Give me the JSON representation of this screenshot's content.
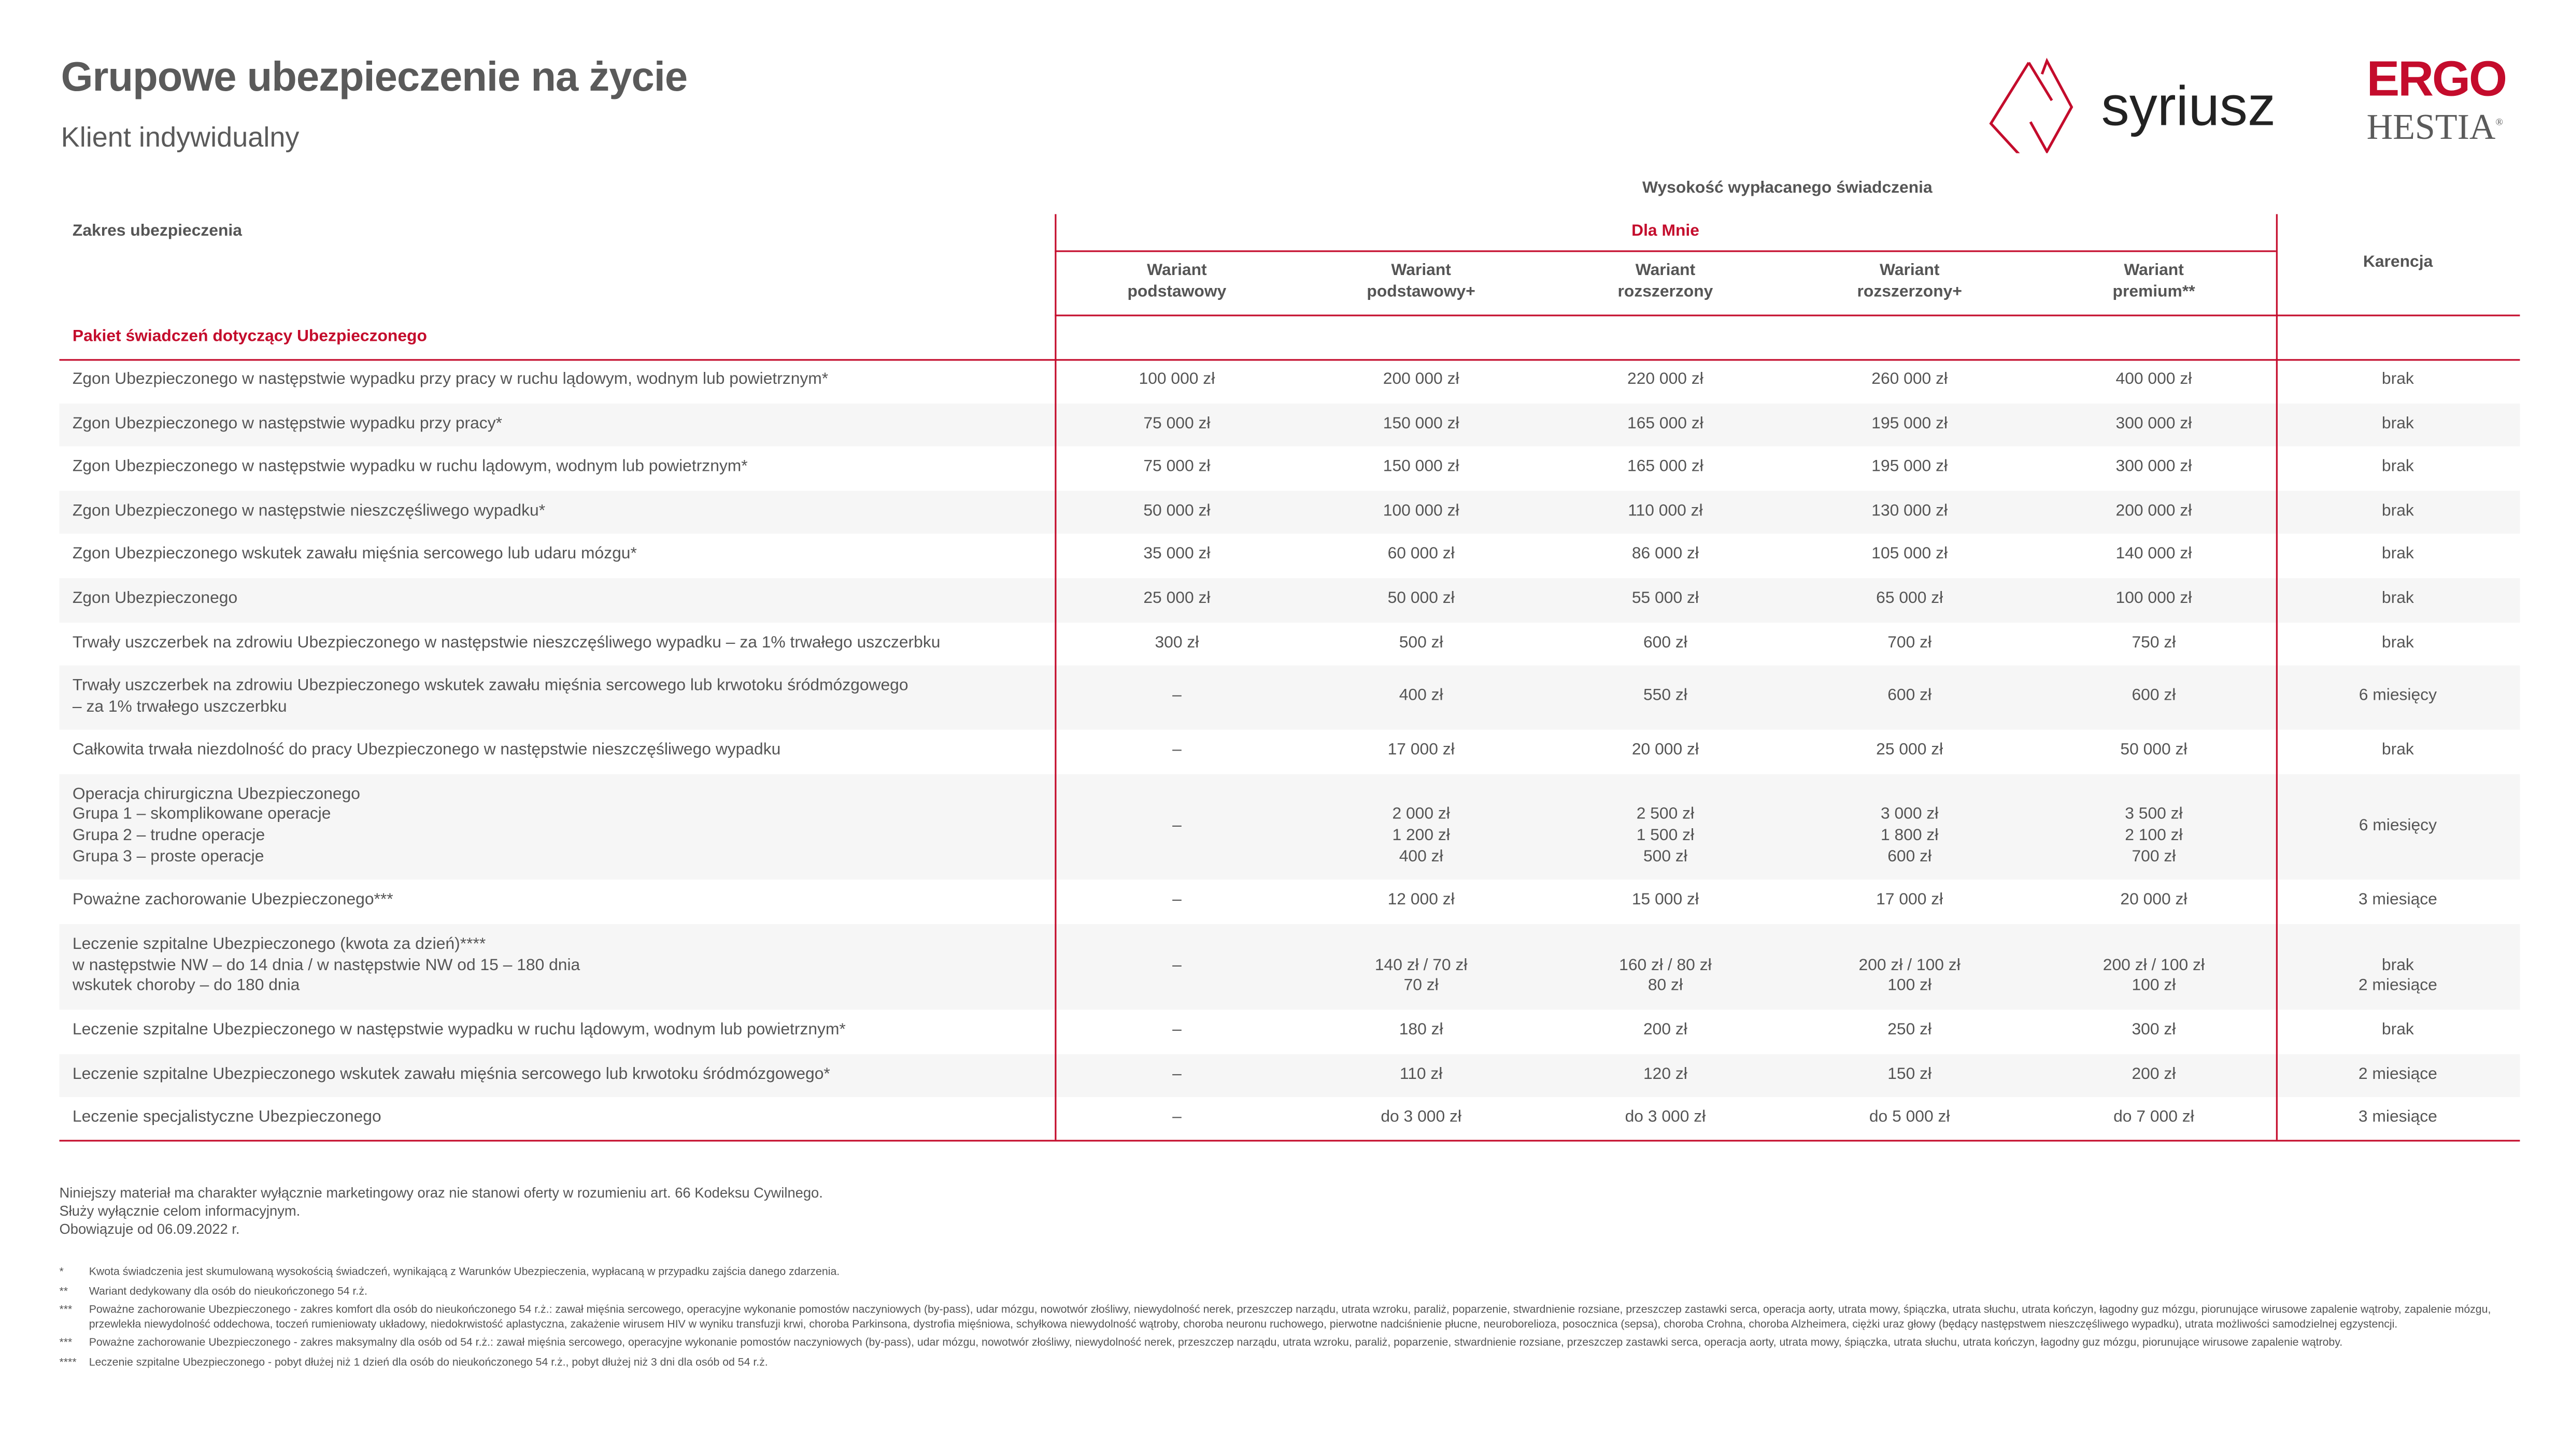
{
  "header": {
    "title": "Grupowe ubezpieczenie na życie",
    "subtitle": "Klient indywidualny"
  },
  "logos": {
    "syriusz": "syriusz",
    "ergo": "ERGO",
    "hestia": "HESTIA",
    "brand_red": "#c40c2c"
  },
  "table": {
    "benefit_header": "Wysokość wypłacanego świadczenia",
    "scope_header": "Zakres ubezpieczenia",
    "group_header": "Dla Mnie",
    "karencja_header": "Karencja",
    "section_label": "Pakiet świadczeń dotyczący Ubezpieczonego",
    "variants": [
      [
        "Wariant",
        "podstawowy"
      ],
      [
        "Wariant",
        "podstawowy+"
      ],
      [
        "Wariant",
        "rozszerzony"
      ],
      [
        "Wariant",
        "rozszerzony+"
      ],
      [
        "Wariant",
        "premium**"
      ]
    ],
    "rows": [
      {
        "label": [
          "Zgon Ubezpieczonego w następstwie wypadku przy pracy w ruchu lądowym, wodnym lub powietrznym*"
        ],
        "values": [
          [
            "100 000 zł"
          ],
          [
            "200 000 zł"
          ],
          [
            "220 000 zł"
          ],
          [
            "260 000 zł"
          ],
          [
            "400 000 zł"
          ]
        ],
        "karencja": [
          "brak"
        ]
      },
      {
        "label": [
          "Zgon Ubezpieczonego w następstwie wypadku przy pracy*"
        ],
        "values": [
          [
            "75 000 zł"
          ],
          [
            "150 000 zł"
          ],
          [
            "165 000 zł"
          ],
          [
            "195 000 zł"
          ],
          [
            "300 000 zł"
          ]
        ],
        "karencja": [
          "brak"
        ]
      },
      {
        "label": [
          "Zgon Ubezpieczonego w następstwie wypadku w ruchu lądowym, wodnym lub powietrznym*"
        ],
        "values": [
          [
            "75 000 zł"
          ],
          [
            "150 000 zł"
          ],
          [
            "165 000 zł"
          ],
          [
            "195 000 zł"
          ],
          [
            "300 000 zł"
          ]
        ],
        "karencja": [
          "brak"
        ]
      },
      {
        "label": [
          "Zgon Ubezpieczonego w następstwie nieszczęśliwego wypadku*"
        ],
        "values": [
          [
            "50 000 zł"
          ],
          [
            "100 000 zł"
          ],
          [
            "110 000 zł"
          ],
          [
            "130 000 zł"
          ],
          [
            "200 000 zł"
          ]
        ],
        "karencja": [
          "brak"
        ]
      },
      {
        "label": [
          "Zgon Ubezpieczonego wskutek zawału mięśnia sercowego lub udaru mózgu*"
        ],
        "values": [
          [
            "35 000 zł"
          ],
          [
            "60 000 zł"
          ],
          [
            "86 000 zł"
          ],
          [
            "105 000 zł"
          ],
          [
            "140 000 zł"
          ]
        ],
        "karencja": [
          "brak"
        ]
      },
      {
        "label": [
          "Zgon Ubezpieczonego"
        ],
        "values": [
          [
            "25 000 zł"
          ],
          [
            "50 000 zł"
          ],
          [
            "55 000 zł"
          ],
          [
            "65 000 zł"
          ],
          [
            "100 000 zł"
          ]
        ],
        "karencja": [
          "brak"
        ]
      },
      {
        "label": [
          "Trwały uszczerbek na zdrowiu Ubezpieczonego w następstwie nieszczęśliwego wypadku – za 1% trwałego uszczerbku"
        ],
        "values": [
          [
            "300 zł"
          ],
          [
            "500 zł"
          ],
          [
            "600 zł"
          ],
          [
            "700 zł"
          ],
          [
            "750 zł"
          ]
        ],
        "karencja": [
          "brak"
        ]
      },
      {
        "label": [
          "Trwały uszczerbek na zdrowiu Ubezpieczonego wskutek zawału mięśnia sercowego lub krwotoku śródmózgowego",
          "– za 1% trwałego uszczerbku"
        ],
        "values": [
          [
            "–"
          ],
          [
            "400 zł"
          ],
          [
            "550 zł"
          ],
          [
            "600 zł"
          ],
          [
            "600 zł"
          ]
        ],
        "karencja": [
          "6 miesięcy"
        ]
      },
      {
        "label": [
          "Całkowita trwała niezdolność do pracy Ubezpieczonego w następstwie nieszczęśliwego wypadku"
        ],
        "values": [
          [
            "–"
          ],
          [
            "17 000 zł"
          ],
          [
            "20 000 zł"
          ],
          [
            "25 000 zł"
          ],
          [
            "50 000 zł"
          ]
        ],
        "karencja": [
          "brak"
        ]
      },
      {
        "label": [
          "Operacja chirurgiczna Ubezpieczonego",
          "Grupa 1 – skomplikowane operacje",
          "Grupa 2 – trudne operacje",
          "Grupa 3 – proste operacje"
        ],
        "values": [
          [
            "–"
          ],
          [
            "",
            "2 000 zł",
            "1 200 zł",
            "400 zł"
          ],
          [
            "",
            "2 500 zł",
            "1 500 zł",
            "500 zł"
          ],
          [
            "",
            "3 000 zł",
            "1 800 zł",
            "600 zł"
          ],
          [
            "",
            "3 500 zł",
            "2 100 zł",
            "700 zł"
          ]
        ],
        "karencja": [
          "6 miesięcy"
        ]
      },
      {
        "label": [
          "Poważne zachorowanie Ubezpieczonego***"
        ],
        "values": [
          [
            "–"
          ],
          [
            "12 000 zł"
          ],
          [
            "15 000 zł"
          ],
          [
            "17 000 zł"
          ],
          [
            "20 000 zł"
          ]
        ],
        "karencja": [
          "3 miesiące"
        ]
      },
      {
        "label": [
          "Leczenie szpitalne Ubezpieczonego (kwota za dzień)****",
          "w następstwie NW – do 14 dnia / w następstwie NW od 15 – 180 dnia",
          "wskutek choroby – do 180 dnia"
        ],
        "values": [
          [
            "–"
          ],
          [
            "",
            "140 zł / 70 zł",
            "70 zł"
          ],
          [
            "",
            "160 zł / 80 zł",
            "80 zł"
          ],
          [
            "",
            "200 zł / 100 zł",
            "100 zł"
          ],
          [
            "",
            "200 zł / 100 zł",
            "100 zł"
          ]
        ],
        "karencja": [
          "",
          "brak",
          "2 miesiące"
        ]
      },
      {
        "label": [
          "Leczenie szpitalne Ubezpieczonego w następstwie wypadku w ruchu lądowym, wodnym lub powietrznym*"
        ],
        "values": [
          [
            "–"
          ],
          [
            "180 zł"
          ],
          [
            "200 zł"
          ],
          [
            "250 zł"
          ],
          [
            "300 zł"
          ]
        ],
        "karencja": [
          "brak"
        ]
      },
      {
        "label": [
          "Leczenie szpitalne Ubezpieczonego wskutek zawału mięśnia sercowego lub krwotoku śródmózgowego*"
        ],
        "values": [
          [
            "–"
          ],
          [
            "110 zł"
          ],
          [
            "120 zł"
          ],
          [
            "150 zł"
          ],
          [
            "200 zł"
          ]
        ],
        "karencja": [
          "2 miesiące"
        ]
      },
      {
        "label": [
          "Leczenie specjalistyczne Ubezpieczonego"
        ],
        "values": [
          [
            "–"
          ],
          [
            "do 3 000 zł"
          ],
          [
            "do 3 000 zł"
          ],
          [
            "do 5 000 zł"
          ],
          [
            "do 7 000 zł"
          ]
        ],
        "karencja": [
          "3 miesiące"
        ]
      }
    ]
  },
  "disclaimer": [
    "Niniejszy materiał ma charakter wyłącznie marketingowy oraz nie stanowi oferty w rozumieniu art. 66 Kodeksu Cywilnego.",
    "Służy wyłącznie celom informacyjnym.",
    "Obowiązuje od 06.09.2022 r."
  ],
  "footnotes": [
    {
      "mark": "*",
      "text": "Kwota świadczenia jest skumulowaną wysokością świadczeń, wynikającą z Warunków Ubezpieczenia, wypłacaną w przypadku zajścia danego zdarzenia."
    },
    {
      "mark": "**",
      "text": "Wariant dedykowany dla osób do nieukończonego 54 r.ż."
    },
    {
      "mark": "***",
      "text": "Poważne zachorowanie Ubezpieczonego - zakres komfort dla osób do nieukończonego 54 r.ż.: zawał mięśnia sercowego, operacyjne wykonanie pomostów naczyniowych (by-pass), udar mózgu, nowotwór złośliwy, niewydolność nerek, przeszczep narządu, utrata wzroku, paraliż, poparzenie, stwardnienie rozsiane, przeszczep zastawki serca, operacja aorty, utrata mowy, śpiączka, utrata słuchu, utrata kończyn, łagodny guz mózgu, piorunujące wirusowe zapalenie wątroby, zapalenie mózgu, przewlekła niewydolność oddechowa, toczeń rumieniowaty układowy, niedokrwistość aplastyczna, zakażenie wirusem HIV w wyniku transfuzji krwi, choroba Parkinsona, dystrofia mięśniowa, schyłkowa niewydolność wątroby, choroba neuronu ruchowego, pierwotne nadciśnienie płucne, neuroborelioza, posocznica (sepsa), choroba Crohna, choroba Alzheimera, ciężki uraz głowy (będący następstwem nieszczęśliwego wypadku), utrata możliwości samodzielnej egzystencji."
    },
    {
      "mark": "***",
      "text": "Poważne zachorowanie Ubezpieczonego - zakres maksymalny dla osób od 54 r.ż.: zawał mięśnia sercowego, operacyjne wykonanie pomostów naczyniowych (by-pass), udar mózgu, nowotwór złośliwy, niewydolność nerek, przeszczep narządu, utrata wzroku, paraliż, poparzenie, stwardnienie rozsiane, przeszczep zastawki serca, operacja aorty, utrata mowy, śpiączka, utrata słuchu, utrata kończyn, łagodny guz mózgu, piorunujące wirusowe zapalenie wątroby."
    },
    {
      "mark": "****",
      "text": "Leczenie szpitalne Ubezpieczonego - pobyt dłużej niż 1 dzień dla osób do nieukończonego 54 r.ż., pobyt dłużej niż 3 dni dla osób od 54 r.ż."
    }
  ]
}
